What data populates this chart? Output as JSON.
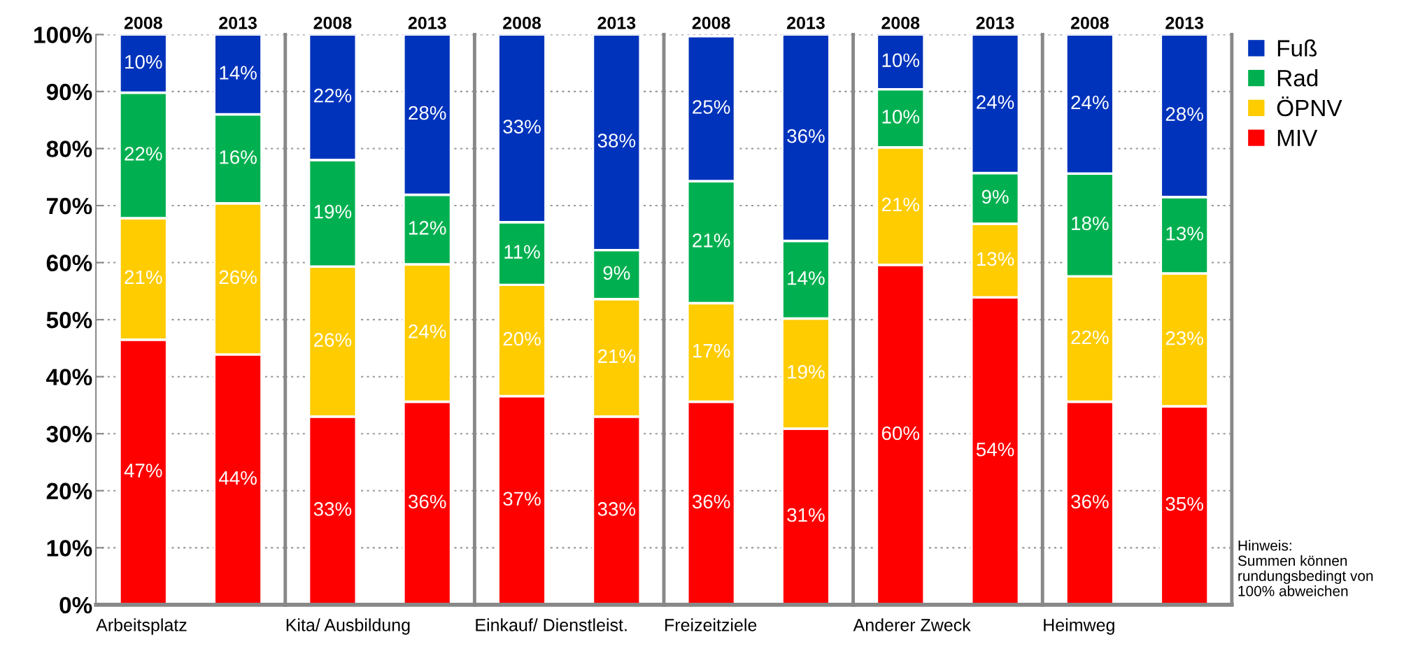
{
  "chart_data": [
    {
      "type": "bar",
      "stacked": true,
      "xlabel": "Arbeitsplatz",
      "categories": [
        "2008",
        "2013"
      ],
      "ylim": [
        0,
        100
      ],
      "yticks": [
        {
          "value": 0,
          "label": "0%"
        },
        {
          "value": 10,
          "label": "10%"
        },
        {
          "value": 20,
          "label": "20%"
        },
        {
          "value": 30,
          "label": "30%"
        },
        {
          "value": 40,
          "label": "40%"
        },
        {
          "value": 50,
          "label": "50%"
        },
        {
          "value": 60,
          "label": "60%"
        },
        {
          "value": 70,
          "label": "70%"
        },
        {
          "value": 80,
          "label": "80%"
        },
        {
          "value": 90,
          "label": "90%"
        },
        {
          "value": 100,
          "label": "100%"
        }
      ],
      "grid": "y",
      "legend": false,
      "series": [
        {
          "color": "#ff0000",
          "values": [
            46.5,
            43.9
          ],
          "value_labels": [
            "47%",
            "44%"
          ]
        },
        {
          "color": "#ffcc00",
          "values": [
            21.3,
            26.5
          ],
          "value_labels": [
            "21%",
            "26%"
          ]
        },
        {
          "color": "#00b050",
          "values": [
            22.0,
            15.6
          ],
          "value_labels": [
            "22%",
            "16%"
          ]
        },
        {
          "color": "#0033bb",
          "values": [
            10.2,
            14.0
          ],
          "value_labels": [
            "10%",
            "14%"
          ]
        }
      ]
    },
    {
      "type": "bar",
      "stacked": true,
      "xlabel": "Kita/ Ausbildung",
      "categories": [
        "2008",
        "2013"
      ],
      "ylim": [
        0,
        100
      ],
      "grid": "y",
      "legend": false,
      "tick_labels": "x",
      "series": [
        {
          "color": "#ff0000",
          "values": [
            33.0,
            35.6
          ],
          "value_labels": [
            "33%",
            "36%"
          ]
        },
        {
          "color": "#ffcc00",
          "values": [
            26.3,
            24.1
          ],
          "value_labels": [
            "26%",
            "24%"
          ]
        },
        {
          "color": "#00b050",
          "values": [
            18.7,
            12.2
          ],
          "value_labels": [
            "19%",
            "12%"
          ]
        },
        {
          "color": "#0033bb",
          "values": [
            22.0,
            28.1
          ],
          "value_labels": [
            "22%",
            "28%"
          ]
        }
      ]
    },
    {
      "type": "bar",
      "stacked": true,
      "xlabel": "Einkauf/ Dienstleist.",
      "categories": [
        "2008",
        "2013"
      ],
      "ylim": [
        0,
        100
      ],
      "grid": "y",
      "legend": false,
      "tick_labels": "x",
      "series": [
        {
          "color": "#ff0000",
          "values": [
            36.6,
            33.0
          ],
          "value_labels": [
            "37%",
            "33%"
          ]
        },
        {
          "color": "#ffcc00",
          "values": [
            19.5,
            20.6
          ],
          "value_labels": [
            "20%",
            "21%"
          ]
        },
        {
          "color": "#00b050",
          "values": [
            11.0,
            8.6
          ],
          "value_labels": [
            "11%",
            "9%"
          ]
        },
        {
          "color": "#0033bb",
          "values": [
            32.9,
            37.8
          ],
          "value_labels": [
            "33%",
            "38%"
          ]
        }
      ]
    },
    {
      "type": "bar",
      "stacked": true,
      "xlabel": "Freizeitziele",
      "categories": [
        "2008",
        "2013"
      ],
      "ylim": [
        0,
        100
      ],
      "grid": "y",
      "legend": false,
      "tick_labels": "x",
      "series": [
        {
          "color": "#ff0000",
          "values": [
            35.6,
            30.9
          ],
          "value_labels": [
            "36%",
            "31%"
          ]
        },
        {
          "color": "#ffcc00",
          "values": [
            17.3,
            19.3
          ],
          "value_labels": [
            "17%",
            "19%"
          ]
        },
        {
          "color": "#00b050",
          "values": [
            21.4,
            13.6
          ],
          "value_labels": [
            "21%",
            "14%"
          ]
        },
        {
          "color": "#0033bb",
          "values": [
            25.4,
            36.2
          ],
          "value_labels": [
            "25%",
            "36%"
          ]
        }
      ]
    },
    {
      "type": "bar",
      "stacked": true,
      "xlabel": "Anderer Zweck",
      "categories": [
        "2008",
        "2013"
      ],
      "ylim": [
        0,
        100
      ],
      "grid": "y",
      "legend": false,
      "tick_labels": "x",
      "series": [
        {
          "color": "#ff0000",
          "values": [
            59.6,
            53.9
          ],
          "value_labels": [
            "60%",
            "54%"
          ]
        },
        {
          "color": "#ffcc00",
          "values": [
            20.6,
            12.9
          ],
          "value_labels": [
            "21%",
            "13%"
          ]
        },
        {
          "color": "#00b050",
          "values": [
            10.2,
            8.9
          ],
          "value_labels": [
            "10%",
            "9%"
          ]
        },
        {
          "color": "#0033bb",
          "values": [
            9.6,
            24.3
          ],
          "value_labels": [
            "10%",
            "24%"
          ]
        }
      ]
    },
    {
      "type": "bar",
      "stacked": true,
      "xlabel": "Heimweg",
      "categories": [
        "2008",
        "2013"
      ],
      "ylim": [
        0,
        100
      ],
      "grid": "y",
      "legend": "right",
      "tick_labels": "x",
      "annotations": [
        "Hinweis:\nSummen können\nrundungsbedingt von\n100% abweichen"
      ],
      "series": [
        {
          "name": "MIV",
          "color": "#ff0000",
          "values": [
            35.6,
            34.8
          ],
          "value_labels": [
            "36%",
            "35%"
          ]
        },
        {
          "name": "ÖPNV",
          "color": "#ffcc00",
          "values": [
            22.0,
            23.3
          ],
          "value_labels": [
            "22%",
            "23%"
          ]
        },
        {
          "name": "Rad",
          "color": "#00b050",
          "values": [
            18.0,
            13.4
          ],
          "value_labels": [
            "18%",
            "13%"
          ]
        },
        {
          "name": "Fuß",
          "color": "#0033bb",
          "values": [
            24.4,
            28.5
          ],
          "value_labels": [
            "24%",
            "28%"
          ]
        }
      ]
    }
  ]
}
